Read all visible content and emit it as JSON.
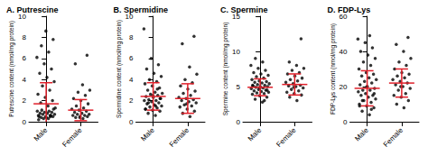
{
  "chart_data": [
    {
      "type": "scatter",
      "title": "A. Putrescine",
      "y_label": "Putrescine content (nmol/mg protein)",
      "categories": [
        "Male",
        "Female"
      ],
      "color": "#000000",
      "values": [
        [
          0.3,
          0.4,
          0.5,
          0.5,
          0.6,
          0.6,
          0.7,
          0.7,
          0.8,
          0.8,
          0.9,
          0.9,
          1.0,
          1.0,
          1.1,
          1.2,
          0.4,
          0.5,
          0.6,
          0.3,
          1.3,
          1.5,
          1.8,
          2.0,
          2.3,
          2.6,
          3.0,
          3.4,
          3.8,
          4.2,
          4.6,
          5.0,
          5.5,
          6.1,
          6.6,
          7.2,
          7.8,
          8.6,
          0.2,
          0.5
        ],
        [
          0.3,
          0.4,
          0.5,
          0.5,
          0.6,
          0.6,
          0.7,
          0.7,
          0.8,
          0.9,
          1.0,
          1.1,
          1.2,
          1.3,
          1.5,
          1.7,
          2.0,
          2.2,
          2.5,
          2.8,
          3.0,
          3.5,
          5.5,
          6.3,
          0.4
        ]
      ],
      "mean": [
        1.7,
        1.1
      ],
      "sd": [
        2.0,
        1.0
      ],
      "ylim": [
        0,
        10
      ],
      "yticks": [
        0,
        2,
        4,
        6,
        8,
        10
      ],
      "grid": false
    },
    {
      "type": "scatter",
      "title": "B. Spermidine",
      "y_label": "Spermidine content (nmol/mg protein)",
      "categories": [
        "Male",
        "Female"
      ],
      "color": "#000000",
      "values": [
        [
          0.6,
          0.8,
          1.0,
          1.1,
          1.2,
          1.3,
          1.4,
          1.5,
          1.6,
          1.7,
          1.8,
          1.9,
          2.0,
          2.0,
          2.1,
          2.2,
          2.3,
          2.4,
          2.5,
          2.6,
          2.7,
          2.8,
          3.0,
          3.2,
          3.4,
          3.6,
          3.8,
          4.0,
          4.3,
          4.6,
          5.0,
          5.4,
          6.0,
          8.8,
          1.5,
          1.8,
          2.2,
          2.5,
          1.2,
          3.1
        ],
        [
          0.5,
          0.8,
          1.0,
          1.2,
          1.4,
          1.5,
          1.6,
          1.8,
          1.9,
          2.0,
          2.1,
          2.2,
          2.3,
          2.5,
          2.7,
          2.9,
          3.1,
          3.4,
          3.7,
          4.0,
          4.5,
          5.2,
          7.4,
          8.1,
          1.7
        ]
      ],
      "mean": [
        2.4,
        2.2
      ],
      "sd": [
        1.3,
        1.4
      ],
      "ylim": [
        0,
        10
      ],
      "yticks": [
        0,
        2,
        4,
        6,
        8,
        10
      ],
      "grid": false
    },
    {
      "type": "scatter",
      "title": "C. Spermine",
      "y_label": "Spermine content (nmol/mg protein)",
      "categories": [
        "Male",
        "Female"
      ],
      "color": "#000000",
      "values": [
        [
          2.8,
          3.2,
          3.5,
          3.7,
          3.9,
          4.0,
          4.1,
          4.2,
          4.3,
          4.4,
          4.5,
          4.6,
          4.7,
          4.8,
          4.9,
          5.0,
          5.0,
          5.1,
          5.2,
          5.3,
          5.4,
          5.5,
          5.6,
          5.7,
          5.8,
          6.0,
          6.2,
          6.4,
          6.6,
          6.8,
          7.0,
          7.3,
          7.6,
          8.0,
          8.5,
          9.0,
          4.5,
          4.8,
          5.2,
          3.0
        ],
        [
          3.0,
          3.5,
          3.8,
          4.0,
          4.2,
          4.4,
          4.6,
          4.8,
          5.0,
          5.1,
          5.2,
          5.4,
          5.6,
          5.8,
          6.0,
          6.2,
          6.5,
          6.8,
          7.0,
          7.3,
          7.6,
          8.0,
          8.5,
          11.8,
          4.9
        ]
      ],
      "mean": [
        4.9,
        5.3
      ],
      "sd": [
        1.2,
        1.5
      ],
      "ylim": [
        0,
        15
      ],
      "yticks": [
        0,
        5,
        10,
        15
      ],
      "grid": false
    },
    {
      "type": "scatter",
      "title": "D. FDP-Lys",
      "y_label": "FDP-Lys content (nmol/mg protein)",
      "categories": [
        "Male",
        "Female"
      ],
      "color": "#000000",
      "values": [
        [
          4,
          6,
          8,
          9,
          10,
          11,
          12,
          13,
          14,
          15,
          15,
          16,
          17,
          18,
          18,
          19,
          20,
          21,
          22,
          23,
          24,
          25,
          26,
          27,
          28,
          30,
          32,
          34,
          36,
          38,
          40,
          42,
          45,
          47,
          49,
          12,
          16,
          20,
          9,
          7
        ],
        [
          8,
          10,
          12,
          14,
          15,
          16,
          18,
          19,
          20,
          21,
          22,
          23,
          24,
          25,
          26,
          27,
          28,
          30,
          32,
          34,
          36,
          40,
          44,
          48,
          20
        ]
      ],
      "mean": [
        19,
        22
      ],
      "sd": [
        10,
        8
      ],
      "ylim": [
        0,
        60
      ],
      "yticks": [
        0,
        20,
        40,
        60
      ],
      "grid": false
    }
  ]
}
